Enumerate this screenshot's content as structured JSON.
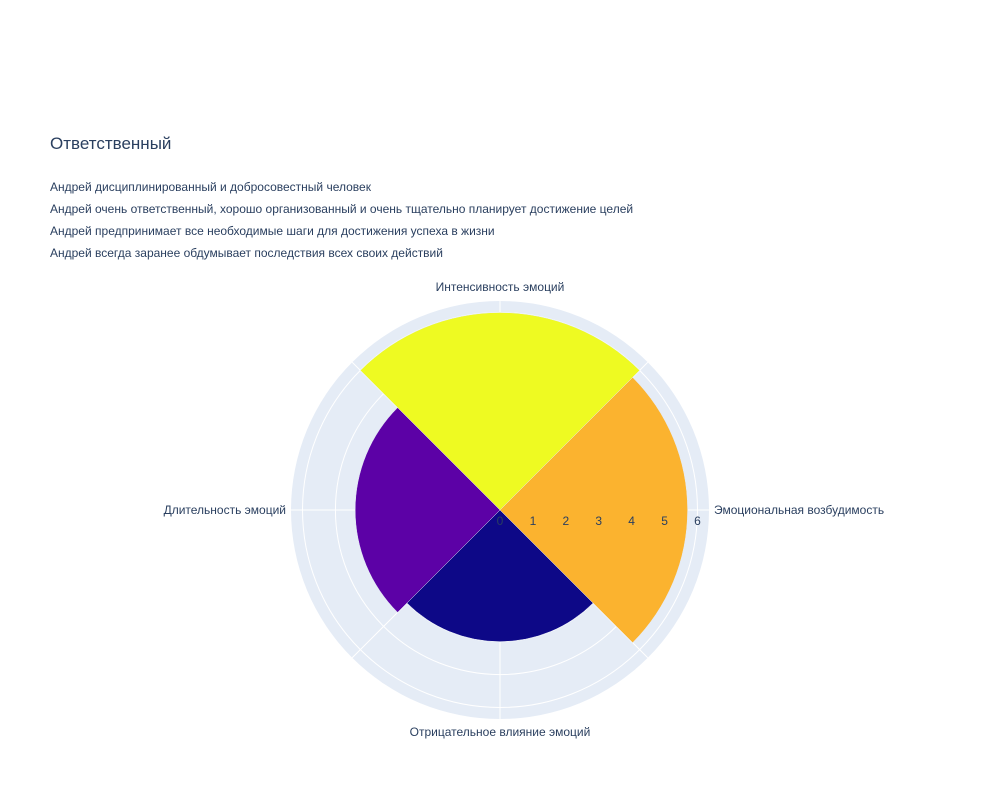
{
  "chart_data": {
    "type": "barpolar",
    "title": "Ответственный",
    "description_lines": [
      "Андрей дисциплинированный и добросовестный человек",
      "Андрей очень ответственный, хорошо организованный и очень тщательно планирует достижение целей",
      "Андрей предпринимает все необходимые шаги для достижения успеха в жизни",
      "Андрей всегда заранее обдумывает последствия всех своих действий"
    ],
    "categories": [
      "Эмоциональная возбудимость",
      "Интенсивность эмоций",
      "Длительность эмоций",
      "Отрицательное влияние эмоций"
    ],
    "values": [
      5.7,
      6,
      4.4,
      4
    ],
    "angles_deg": [
      0,
      90,
      180,
      270
    ],
    "colors": [
      "#fbb32f",
      "#eefa22",
      "#5c01a6",
      "#0d0887"
    ],
    "radial_ticks": [
      "0",
      "1",
      "2",
      "3",
      "4",
      "5",
      "6"
    ],
    "radial_range": [
      0,
      6.35
    ]
  }
}
